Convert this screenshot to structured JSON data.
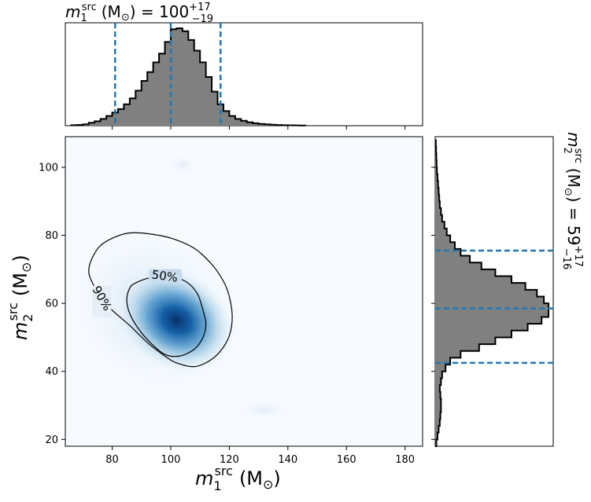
{
  "chart_data": [
    {
      "type": "heatmap",
      "role": "joint-posterior",
      "xlabel_symbol": "m",
      "xlabel_sub": "1",
      "xlabel_sup": "src",
      "xlabel_unit": "(M",
      "xlabel_unit_sub": "⊙",
      "xlabel_close": ")",
      "ylabel_symbol": "m",
      "ylabel_sub": "2",
      "ylabel_sup": "src",
      "ylabel_unit": "(M",
      "ylabel_unit_sub": "⊙",
      "ylabel_close": ")",
      "xlim": [
        64,
        186
      ],
      "ylim": [
        18,
        109
      ],
      "xticks": [
        80,
        100,
        120,
        140,
        160,
        180
      ],
      "yticks": [
        20,
        40,
        60,
        80,
        100
      ],
      "density_peak": {
        "x": 102,
        "y": 55
      },
      "contours": [
        {
          "label": "50%",
          "points": [
            [
              88,
              66
            ],
            [
              93,
              67.5
            ],
            [
              100,
              67.7
            ],
            [
              105,
              66.5
            ],
            [
              109,
              63
            ],
            [
              111,
              58
            ],
            [
              112,
              54
            ],
            [
              111,
              50
            ],
            [
              108,
              46.5
            ],
            [
              103,
              44.5
            ],
            [
              98,
              45
            ],
            [
              93,
              48.5
            ],
            [
              89,
              52.5
            ],
            [
              86,
              57
            ],
            [
              85,
              61
            ],
            [
              86,
              64.5
            ]
          ]
        },
        {
          "label": "90%",
          "points": [
            [
              73,
              73
            ],
            [
              76,
              77
            ],
            [
              81,
              79.5
            ],
            [
              86,
              80.7
            ],
            [
              92,
              80.5
            ],
            [
              100,
              79.2
            ],
            [
              108,
              76.2
            ],
            [
              114,
              71.5
            ],
            [
              118,
              66.5
            ],
            [
              120,
              62
            ],
            [
              121,
              56
            ],
            [
              120,
              50.5
            ],
            [
              117,
              46
            ],
            [
              113,
              43
            ],
            [
              108,
              41.4
            ],
            [
              102,
              42.5
            ],
            [
              98,
              44.5
            ],
            [
              92,
              48.5
            ],
            [
              86,
              53.5
            ],
            [
              80,
              58
            ],
            [
              76,
              62
            ],
            [
              73,
              66.5
            ],
            [
              72,
              69.5
            ]
          ]
        }
      ],
      "colormap": [
        "#f7fbff",
        "#08306b"
      ]
    },
    {
      "type": "bar",
      "role": "marginal-histogram-m1",
      "title_symbol": "m",
      "title_sub": "1",
      "title_sup": "src",
      "title_unit": "(M",
      "title_unit_sub": "⊙",
      "title_eq": ") = 100",
      "title_plus": "+17",
      "title_minus": "−19",
      "x_range": [
        64,
        186
      ],
      "bin_edges": [
        66,
        68,
        70,
        72,
        74,
        76,
        78,
        80,
        82,
        84,
        86,
        88,
        90,
        92,
        94,
        96,
        98,
        100,
        102,
        104,
        106,
        108,
        110,
        112,
        114,
        116,
        118,
        120,
        122,
        124,
        126,
        128,
        130,
        132,
        134,
        136,
        138,
        140,
        142,
        144,
        146
      ],
      "counts": [
        0.005,
        0.008,
        0.014,
        0.03,
        0.045,
        0.07,
        0.1,
        0.135,
        0.17,
        0.22,
        0.28,
        0.36,
        0.46,
        0.55,
        0.65,
        0.74,
        0.86,
        0.99,
        1.0,
        0.97,
        0.88,
        0.77,
        0.65,
        0.5,
        0.35,
        0.22,
        0.15,
        0.1,
        0.07,
        0.05,
        0.035,
        0.025,
        0.018,
        0.014,
        0.01,
        0.007,
        0.005,
        0.004,
        0.003,
        0.002
      ],
      "median": 100,
      "lower": 81,
      "upper": 117,
      "line_color": "#1f77b4"
    },
    {
      "type": "bar",
      "orientation": "horizontal",
      "role": "marginal-histogram-m2",
      "title_symbol": "m",
      "title_sub": "2",
      "title_sup": "src",
      "title_unit": "(M",
      "title_unit_sub": "⊙",
      "title_eq": ") = 59",
      "title_plus": "+17",
      "title_minus": "−16",
      "y_range": [
        18,
        109
      ],
      "bin_edges": [
        18,
        20,
        22,
        24,
        26,
        28,
        30,
        32,
        34,
        36,
        38,
        40,
        42,
        44,
        46,
        48,
        50,
        52,
        54,
        56,
        58,
        60,
        62,
        64,
        66,
        68,
        70,
        72,
        74,
        76,
        78,
        80,
        82,
        84,
        86,
        88,
        90,
        92,
        94,
        96,
        98,
        100,
        102,
        104,
        106,
        108
      ],
      "counts": [
        0.01,
        0.02,
        0.03,
        0.04,
        0.045,
        0.05,
        0.05,
        0.045,
        0.04,
        0.05,
        0.06,
        0.09,
        0.13,
        0.22,
        0.38,
        0.52,
        0.66,
        0.8,
        0.92,
        0.98,
        0.98,
        0.94,
        0.88,
        0.78,
        0.66,
        0.52,
        0.4,
        0.3,
        0.22,
        0.17,
        0.13,
        0.1,
        0.08,
        0.06,
        0.05,
        0.04,
        0.035,
        0.03,
        0.025,
        0.02,
        0.015,
        0.012,
        0.01,
        0.008,
        0.006
      ],
      "median": 58.5,
      "lower": 42.5,
      "upper": 75.5,
      "line_color": "#1f77b4"
    }
  ]
}
